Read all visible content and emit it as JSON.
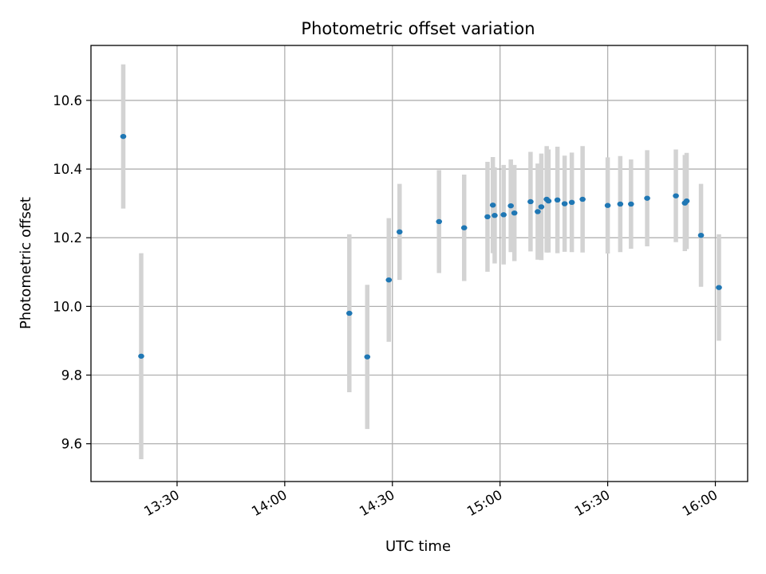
{
  "chart_data": {
    "type": "scatter",
    "title": "Photometric offset variation",
    "xlabel": "UTC time",
    "ylabel": "Photometric offset",
    "grid": true,
    "xlim": [
      "13:06",
      "16:09"
    ],
    "ylim": [
      9.49,
      10.76
    ],
    "x_ticks": [
      "13:30",
      "14:00",
      "14:30",
      "15:00",
      "15:30",
      "16:00"
    ],
    "y_ticks": [
      9.6,
      9.8,
      10.0,
      10.2,
      10.4,
      10.6
    ],
    "colors": {
      "points": "#1f77b4",
      "errorbars": "#d3d3d3",
      "grid": "#b0b0b0"
    },
    "points": [
      {
        "time": "13:15",
        "value": 10.495,
        "err": 0.21
      },
      {
        "time": "13:20",
        "value": 9.855,
        "err": 0.3
      },
      {
        "time": "14:18",
        "value": 9.98,
        "err": 0.23
      },
      {
        "time": "14:23",
        "value": 9.853,
        "err": 0.21
      },
      {
        "time": "14:29",
        "value": 10.077,
        "err": 0.18
      },
      {
        "time": "14:32",
        "value": 10.217,
        "err": 0.14
      },
      {
        "time": "14:43",
        "value": 10.247,
        "err": 0.15
      },
      {
        "time": "14:50",
        "value": 10.229,
        "err": 0.155
      },
      {
        "time": "14:56.5",
        "value": 10.261,
        "err": 0.16
      },
      {
        "time": "14:58",
        "value": 10.295,
        "err": 0.14
      },
      {
        "time": "14:58.5",
        "value": 10.265,
        "err": 0.14
      },
      {
        "time": "15:01",
        "value": 10.267,
        "err": 0.145
      },
      {
        "time": "15:03",
        "value": 10.293,
        "err": 0.135
      },
      {
        "time": "15:04",
        "value": 10.272,
        "err": 0.14
      },
      {
        "time": "15:08.5",
        "value": 10.305,
        "err": 0.145
      },
      {
        "time": "15:10.5",
        "value": 10.276,
        "err": 0.14
      },
      {
        "time": "15:11.5",
        "value": 10.29,
        "err": 0.155
      },
      {
        "time": "15:13",
        "value": 10.312,
        "err": 0.155
      },
      {
        "time": "15:13.5",
        "value": 10.307,
        "err": 0.15
      },
      {
        "time": "15:16",
        "value": 10.31,
        "err": 0.155
      },
      {
        "time": "15:18",
        "value": 10.299,
        "err": 0.14
      },
      {
        "time": "15:20",
        "value": 10.303,
        "err": 0.145
      },
      {
        "time": "15:23",
        "value": 10.312,
        "err": 0.155
      },
      {
        "time": "15:30",
        "value": 10.294,
        "err": 0.14
      },
      {
        "time": "15:33.5",
        "value": 10.298,
        "err": 0.14
      },
      {
        "time": "15:36.5",
        "value": 10.298,
        "err": 0.13
      },
      {
        "time": "15:41",
        "value": 10.315,
        "err": 0.14
      },
      {
        "time": "15:49",
        "value": 10.322,
        "err": 0.135
      },
      {
        "time": "15:51.5",
        "value": 10.301,
        "err": 0.14
      },
      {
        "time": "15:52",
        "value": 10.307,
        "err": 0.14
      },
      {
        "time": "15:56",
        "value": 10.207,
        "err": 0.15
      },
      {
        "time": "16:01",
        "value": 10.055,
        "err": 0.155
      }
    ]
  }
}
